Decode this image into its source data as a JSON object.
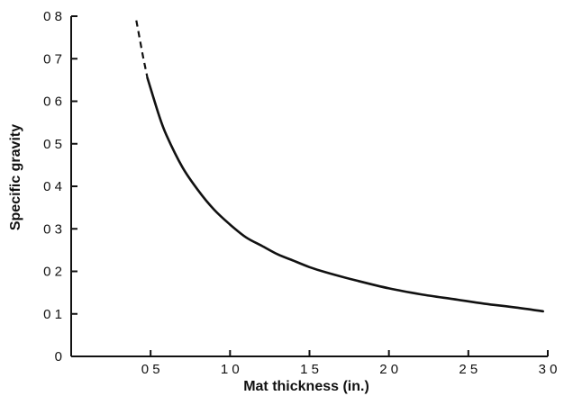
{
  "chart_data": {
    "type": "line",
    "title": "",
    "xlabel": "Mat thickness (in.)",
    "ylabel": "Specific gravity",
    "xlim": [
      0,
      3.0
    ],
    "ylim": [
      0,
      0.8
    ],
    "x_ticks": [
      0.5,
      1.0,
      1.5,
      2.0,
      2.5,
      3.0
    ],
    "x_tick_labels": [
      "0 5",
      "1 0",
      "1 5",
      "2 0",
      "2 5",
      "3 0"
    ],
    "y_ticks": [
      0,
      0.1,
      0.2,
      0.3,
      0.4,
      0.5,
      0.6,
      0.7,
      0.8
    ],
    "y_tick_labels": [
      "0",
      "0 1",
      "0 2",
      "0 3",
      "0 4",
      "0 5",
      "0 6",
      "0 7",
      "0 8"
    ],
    "grid": false,
    "legend": "none",
    "series": [
      {
        "style": "dashed",
        "x": [
          0.41,
          0.45,
          0.48
        ],
        "y": [
          0.79,
          0.71,
          0.655
        ]
      },
      {
        "style": "solid",
        "x": [
          0.48,
          0.55,
          0.6,
          0.7,
          0.8,
          0.9,
          1.0,
          1.1,
          1.2,
          1.3,
          1.4,
          1.5,
          1.6,
          1.8,
          2.0,
          2.2,
          2.4,
          2.6,
          2.8,
          2.97
        ],
        "y": [
          0.655,
          0.57,
          0.52,
          0.445,
          0.39,
          0.345,
          0.31,
          0.28,
          0.26,
          0.24,
          0.225,
          0.21,
          0.198,
          0.178,
          0.16,
          0.146,
          0.135,
          0.124,
          0.115,
          0.106
        ]
      }
    ]
  }
}
